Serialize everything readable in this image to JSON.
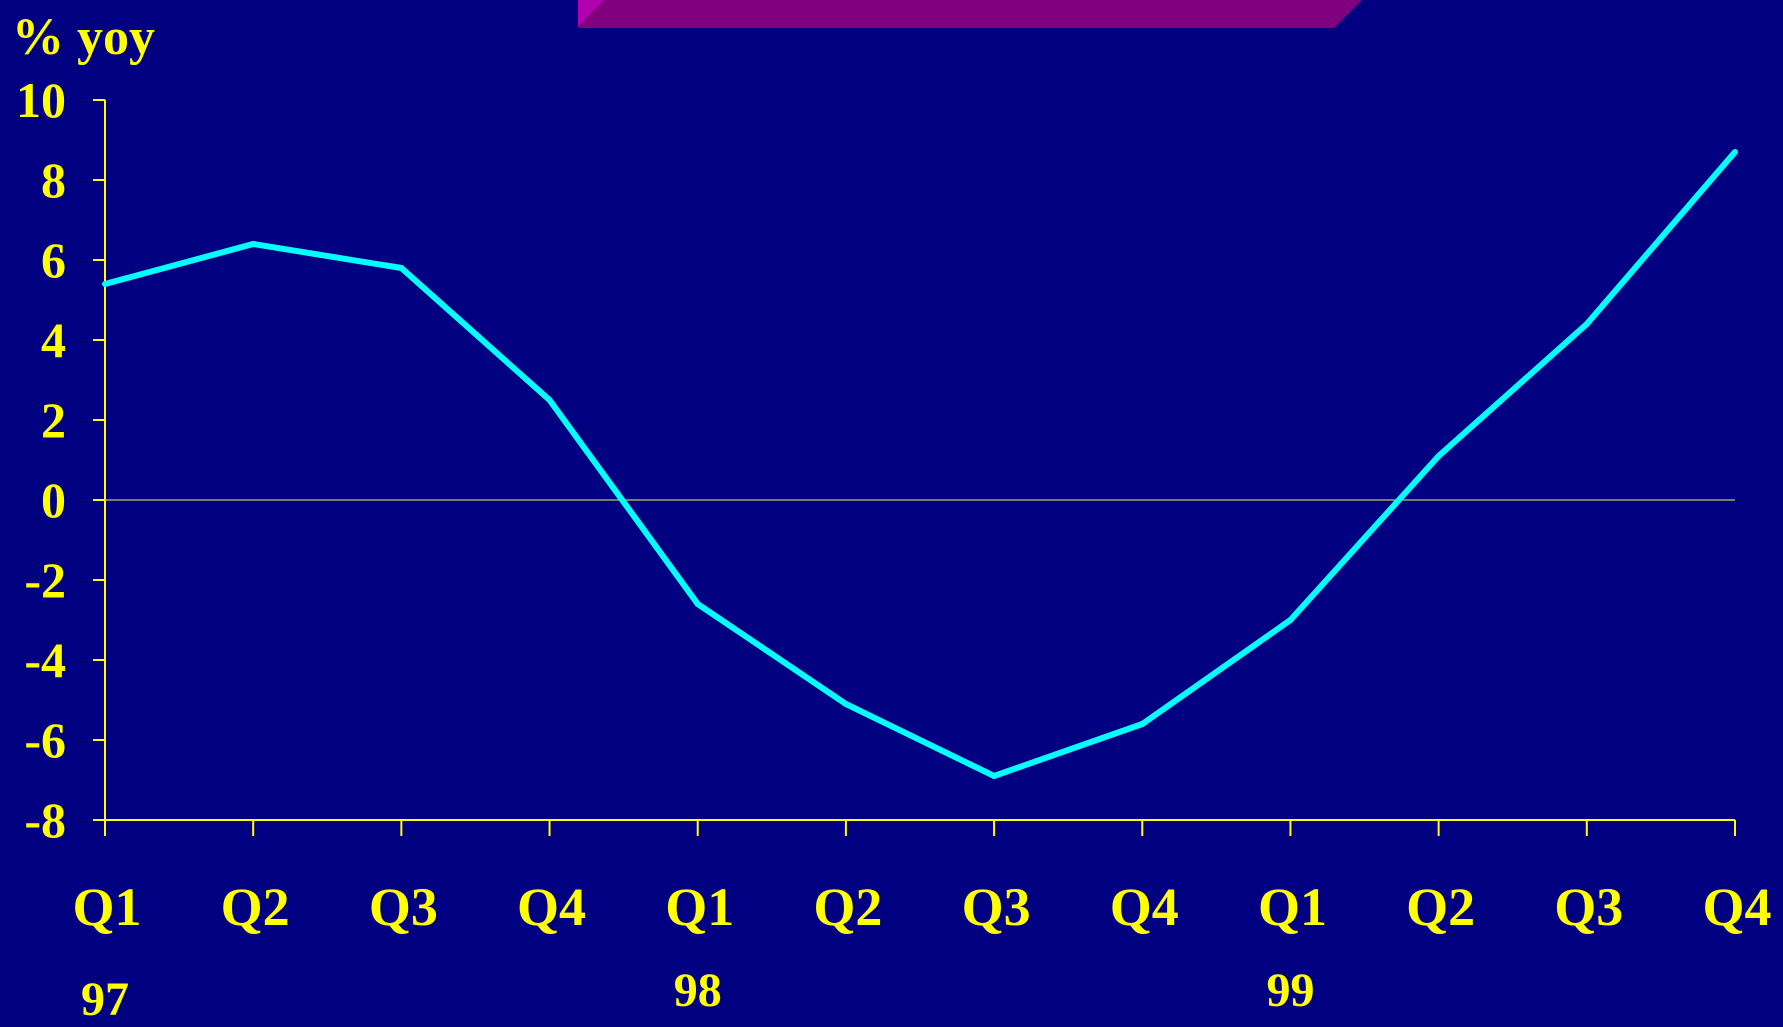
{
  "colors": {
    "background": "#000080",
    "text": "#FFFF00",
    "axis": "#FFFF00",
    "series_line": "#00FFFF",
    "zero_line": "#C8C864",
    "banner": "#800080",
    "banner_accent": "#B000B0"
  },
  "chart_data": {
    "type": "line",
    "ylabel": "% yoy",
    "ylim": [
      -8,
      10
    ],
    "yticks": [
      10,
      8,
      6,
      4,
      2,
      0,
      -2,
      -4,
      -6,
      -8
    ],
    "categories": [
      "Q1",
      "Q2",
      "Q3",
      "Q4",
      "Q1",
      "Q2",
      "Q3",
      "Q4",
      "Q1",
      "Q2",
      "Q3",
      "Q4"
    ],
    "year_labels": [
      {
        "label": "97",
        "index": 0
      },
      {
        "label": "98",
        "index": 4
      },
      {
        "label": "99",
        "index": 8
      }
    ],
    "series": [
      {
        "values": [
          5.4,
          6.4,
          5.8,
          2.5,
          -2.6,
          -5.1,
          -6.9,
          -5.6,
          -3.0,
          1.1,
          4.4,
          8.7
        ]
      }
    ],
    "grid": false,
    "zero_line": true
  }
}
